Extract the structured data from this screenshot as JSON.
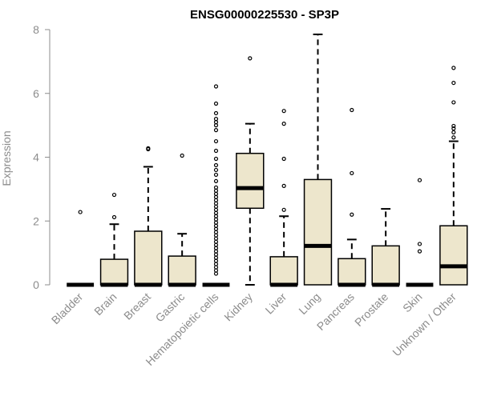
{
  "chart_data": {
    "type": "box",
    "title": "ENSG00000225530 - SP3P",
    "ylabel": "Expression",
    "xlabel": "",
    "ylim": [
      0,
      8
    ],
    "yticks": [
      0,
      2,
      4,
      6,
      8
    ],
    "grid": false,
    "colors": {
      "box_fill": "#ede6cc",
      "box_stroke": "#000000",
      "axis": "#8c8c8c",
      "title": "#000000"
    },
    "categories": [
      "Bladder",
      "Brain",
      "Breast",
      "Gastric",
      "Hematopoietic cells",
      "Kidney",
      "Liver",
      "Lung",
      "Pancreas",
      "Prostate",
      "Skin",
      "Unknown / Other"
    ],
    "boxes": [
      {
        "category": "Bladder",
        "q1": 0,
        "median": 0,
        "q3": 0,
        "whisker_low": 0,
        "whisker_high": 0,
        "outliers": [
          2.28
        ]
      },
      {
        "category": "Brain",
        "q1": 0,
        "median": 0,
        "q3": 0.8,
        "whisker_low": 0,
        "whisker_high": 1.9,
        "outliers": [
          2.12,
          2.82
        ]
      },
      {
        "category": "Breast",
        "q1": 0,
        "median": 0,
        "q3": 1.68,
        "whisker_low": 0,
        "whisker_high": 3.7,
        "outliers": [
          4.25,
          4.28
        ]
      },
      {
        "category": "Gastric",
        "q1": 0,
        "median": 0,
        "q3": 0.9,
        "whisker_low": 0,
        "whisker_high": 1.6,
        "outliers": [
          4.05
        ]
      },
      {
        "category": "Hematopoietic cells",
        "q1": 0,
        "median": 0,
        "q3": 0,
        "whisker_low": 0,
        "whisker_high": 0,
        "outliers": [
          0.35,
          0.45,
          0.55,
          0.65,
          0.75,
          0.85,
          0.95,
          1.05,
          1.15,
          1.25,
          1.35,
          1.45,
          1.55,
          1.65,
          1.75,
          1.85,
          1.95,
          2.05,
          2.15,
          2.25,
          2.35,
          2.45,
          2.55,
          2.65,
          2.75,
          2.85,
          2.95,
          3.05,
          3.25,
          3.45,
          3.6,
          3.75,
          3.95,
          4.2,
          4.5,
          4.85,
          5.0,
          5.1,
          5.2,
          5.38,
          5.68,
          6.22
        ]
      },
      {
        "category": "Kidney",
        "q1": 2.4,
        "median": 3.03,
        "q3": 4.12,
        "whisker_low": 0,
        "whisker_high": 5.05,
        "outliers": [
          7.1
        ]
      },
      {
        "category": "Liver",
        "q1": 0,
        "median": 0,
        "q3": 0.88,
        "whisker_low": 0,
        "whisker_high": 2.15,
        "outliers": [
          2.35,
          3.1,
          3.95,
          5.05,
          5.45
        ]
      },
      {
        "category": "Lung",
        "q1": 0,
        "median": 1.22,
        "q3": 3.3,
        "whisker_low": 0,
        "whisker_high": 7.85,
        "outliers": []
      },
      {
        "category": "Pancreas",
        "q1": 0,
        "median": 0,
        "q3": 0.82,
        "whisker_low": 0,
        "whisker_high": 1.42,
        "outliers": [
          2.2,
          3.5,
          5.48
        ]
      },
      {
        "category": "Prostate",
        "q1": 0,
        "median": 0,
        "q3": 1.22,
        "whisker_low": 0,
        "whisker_high": 2.38,
        "outliers": []
      },
      {
        "category": "Skin",
        "q1": 0,
        "median": 0,
        "q3": 0,
        "whisker_low": 0,
        "whisker_high": 0,
        "outliers": [
          1.05,
          1.28,
          3.28
        ]
      },
      {
        "category": "Unknown / Other",
        "q1": 0,
        "median": 0.58,
        "q3": 1.85,
        "whisker_low": 0,
        "whisker_high": 4.5,
        "outliers": [
          4.62,
          4.78,
          4.9,
          4.98,
          5.72,
          6.33,
          6.8
        ]
      }
    ]
  }
}
